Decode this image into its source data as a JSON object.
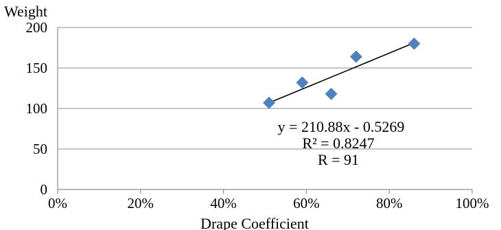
{
  "chart_data": {
    "type": "scatter",
    "title": "",
    "xlabel": "Drape Coefficient",
    "ylabel": "Weight",
    "xlim": [
      0,
      1
    ],
    "ylim": [
      0,
      200
    ],
    "x_ticks": [
      0,
      0.2,
      0.4,
      0.6,
      0.8,
      1.0
    ],
    "x_tick_labels": [
      "0%",
      "20%",
      "40%",
      "60%",
      "80%",
      "100%"
    ],
    "y_ticks": [
      0,
      50,
      100,
      150,
      200
    ],
    "y_tick_labels": [
      "0",
      "50",
      "100",
      "150",
      "200"
    ],
    "grid": "horizontal",
    "marker": "diamond",
    "colors": {
      "marker": "#4F81BD",
      "trendline": "#000000",
      "grid": "#8c8c8c",
      "axis": "#8c8c8c"
    },
    "series": [
      {
        "points": [
          {
            "x": 0.51,
            "y": 107
          },
          {
            "x": 0.59,
            "y": 132
          },
          {
            "x": 0.66,
            "y": 118
          },
          {
            "x": 0.72,
            "y": 164
          },
          {
            "x": 0.86,
            "y": 180
          }
        ]
      }
    ],
    "trendline": {
      "from": {
        "x": 0.51,
        "y": 107
      },
      "to": {
        "x": 0.86,
        "y": 181
      }
    },
    "annotations": [
      "y = 210.88x - 0.5269",
      "R² = 0.8247",
      "R = 91"
    ]
  }
}
